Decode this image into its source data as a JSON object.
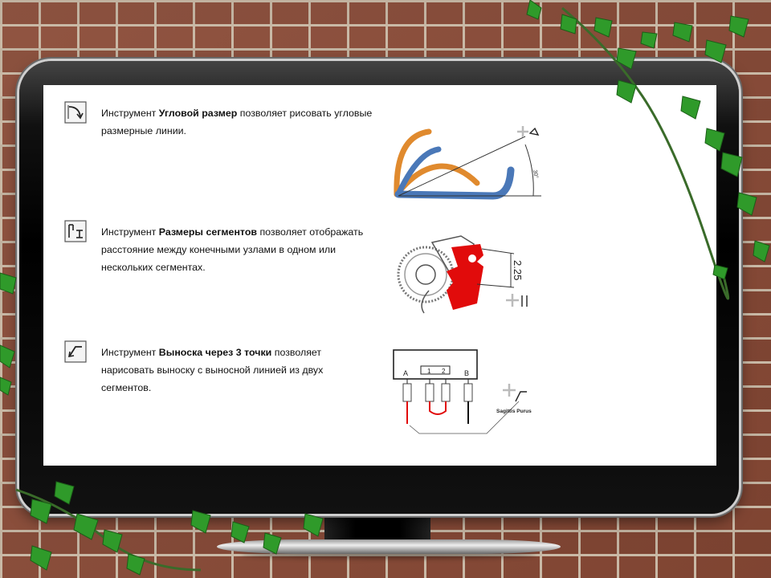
{
  "items": [
    {
      "icon": "angular-dimension-icon",
      "pre": "Инструмент ",
      "bold": "Угловой размер",
      "post": " позволяет рисовать угловые размерные линии.",
      "illustration": {
        "angle_label": "30°"
      }
    },
    {
      "icon": "segment-dimension-icon",
      "pre": "Инструмент ",
      "bold": "Размеры сегментов",
      "post": " позволяет отображать расстояние между конечными узлами в одном или нескольких сегментах.",
      "illustration": {
        "dimension_label": "2.25"
      }
    },
    {
      "icon": "callout-icon",
      "pre": "Инструмент ",
      "bold": "Выноска через 3 точки",
      "post": " позволяет нарисовать выноску с выносной линией из двух сегментов.",
      "illustration": {
        "label_a": "A",
        "label_1": "1",
        "label_2": "2",
        "label_b": "B",
        "callout_text": "Sagittis Purus"
      }
    }
  ],
  "colors": {
    "orange": "#e08a2e",
    "blue": "#4a78b8",
    "red": "#e10b0b"
  }
}
